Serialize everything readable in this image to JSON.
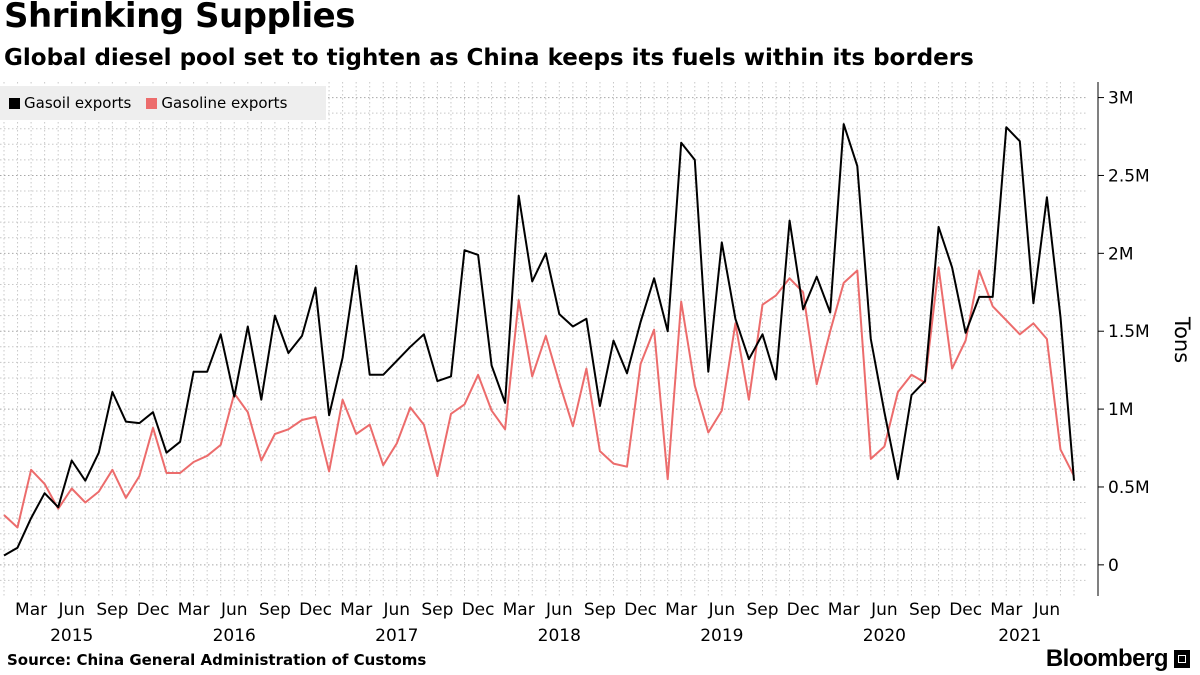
{
  "header": {
    "title": "Shrinking Supplies",
    "subtitle": "Global diesel pool set to tighten as China keeps its fuels within its borders"
  },
  "footer": {
    "source": "Source: China General Administration of Customs",
    "brand": "Bloomberg"
  },
  "colors": {
    "gasoil": "#000000",
    "gasoline": "#ec6c6c",
    "grid": "#c8c8c8"
  },
  "chart_data": {
    "type": "line",
    "title": "Shrinking Supplies",
    "subtitle": "Global diesel pool set to tighten as China keeps its fuels within its borders",
    "ylabel": "Tons",
    "xlabel": "",
    "ylim": [
      -200000,
      3100000
    ],
    "yticks": [
      0,
      500000,
      1000000,
      1500000,
      2000000,
      2500000,
      3000000
    ],
    "ytick_labels": [
      "0",
      "0.5M",
      "1M",
      "1.5M",
      "2M",
      "2.5M",
      "3M"
    ],
    "y_axis_position": "right",
    "grid": true,
    "legend_position": "top-left",
    "x_start": "2015-01",
    "x_end": "2021-08",
    "month_ticks": [
      {
        "month": "2015-03",
        "label": "Mar"
      },
      {
        "month": "2015-06",
        "label": "Jun"
      },
      {
        "month": "2015-09",
        "label": "Sep"
      },
      {
        "month": "2015-12",
        "label": "Dec"
      },
      {
        "month": "2016-03",
        "label": "Mar"
      },
      {
        "month": "2016-06",
        "label": "Jun"
      },
      {
        "month": "2016-09",
        "label": "Sep"
      },
      {
        "month": "2016-12",
        "label": "Dec"
      },
      {
        "month": "2017-03",
        "label": "Mar"
      },
      {
        "month": "2017-06",
        "label": "Jun"
      },
      {
        "month": "2017-09",
        "label": "Sep"
      },
      {
        "month": "2017-12",
        "label": "Dec"
      },
      {
        "month": "2018-03",
        "label": "Mar"
      },
      {
        "month": "2018-06",
        "label": "Jun"
      },
      {
        "month": "2018-09",
        "label": "Sep"
      },
      {
        "month": "2018-12",
        "label": "Dec"
      },
      {
        "month": "2019-03",
        "label": "Mar"
      },
      {
        "month": "2019-06",
        "label": "Jun"
      },
      {
        "month": "2019-09",
        "label": "Sep"
      },
      {
        "month": "2019-12",
        "label": "Dec"
      },
      {
        "month": "2020-03",
        "label": "Mar"
      },
      {
        "month": "2020-06",
        "label": "Jun"
      },
      {
        "month": "2020-09",
        "label": "Sep"
      },
      {
        "month": "2020-12",
        "label": "Dec"
      },
      {
        "month": "2021-03",
        "label": "Mar"
      },
      {
        "month": "2021-06",
        "label": "Jun"
      }
    ],
    "year_labels": [
      {
        "month": "2015-06",
        "label": "2015"
      },
      {
        "month": "2016-06",
        "label": "2016"
      },
      {
        "month": "2017-06",
        "label": "2017"
      },
      {
        "month": "2018-06",
        "label": "2018"
      },
      {
        "month": "2019-06",
        "label": "2019"
      },
      {
        "month": "2020-06",
        "label": "2020"
      },
      {
        "month": "2021-04",
        "label": "2021"
      }
    ],
    "series": [
      {
        "name": "Gasoil exports",
        "color": "#000000",
        "start": "2015-01",
        "values": [
          60000,
          110000,
          300000,
          460000,
          370000,
          670000,
          540000,
          720000,
          1110000,
          920000,
          910000,
          980000,
          720000,
          790000,
          1240000,
          1240000,
          1480000,
          1080000,
          1530000,
          1060000,
          1600000,
          1360000,
          1470000,
          1780000,
          960000,
          1330000,
          1920000,
          1220000,
          1220000,
          1310000,
          1400000,
          1480000,
          1180000,
          1210000,
          2020000,
          1990000,
          1280000,
          1040000,
          2370000,
          1820000,
          2000000,
          1610000,
          1530000,
          1580000,
          1020000,
          1440000,
          1230000,
          1560000,
          1840000,
          1500000,
          2710000,
          2600000,
          1240000,
          2070000,
          1580000,
          1320000,
          1480000,
          1190000,
          2210000,
          1640000,
          1850000,
          1620000,
          2830000,
          2560000,
          1450000,
          980000,
          550000,
          1090000,
          1180000,
          2170000,
          1910000,
          1490000,
          1720000,
          1720000,
          2810000,
          2720000,
          1680000,
          2360000,
          1590000,
          540000
        ]
      },
      {
        "name": "Gasoline exports",
        "color": "#ec6c6c",
        "start": "2015-01",
        "values": [
          320000,
          240000,
          610000,
          520000,
          360000,
          490000,
          400000,
          470000,
          610000,
          430000,
          570000,
          880000,
          590000,
          590000,
          660000,
          700000,
          770000,
          1100000,
          980000,
          670000,
          840000,
          870000,
          930000,
          950000,
          600000,
          1060000,
          840000,
          900000,
          640000,
          780000,
          1010000,
          900000,
          570000,
          970000,
          1030000,
          1220000,
          990000,
          870000,
          1700000,
          1210000,
          1470000,
          1170000,
          890000,
          1260000,
          730000,
          650000,
          630000,
          1290000,
          1510000,
          550000,
          1690000,
          1150000,
          850000,
          990000,
          1550000,
          1060000,
          1670000,
          1730000,
          1840000,
          1750000,
          1160000,
          1500000,
          1810000,
          1890000,
          680000,
          760000,
          1110000,
          1220000,
          1170000,
          1910000,
          1260000,
          1440000,
          1890000,
          1660000,
          1570000,
          1480000,
          1550000,
          1450000,
          740000,
          570000
        ]
      }
    ]
  }
}
